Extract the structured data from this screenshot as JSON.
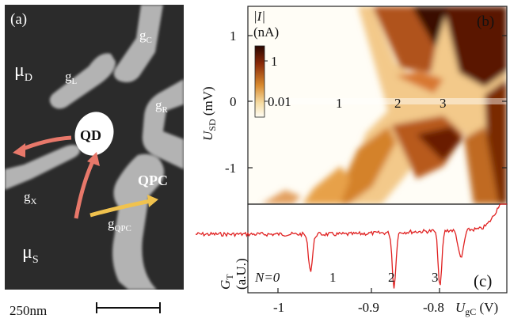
{
  "panel_a": {
    "label": "(a)",
    "gate_labels": {
      "gC": "g",
      "gC_sub": "C",
      "gL": "g",
      "gL_sub": "L",
      "gR": "g",
      "gR_sub": "R",
      "gX": "g",
      "gX_sub": "X",
      "gQPC": "g",
      "gQPC_sub": "QPC"
    },
    "mu_D": "μ",
    "mu_D_sub": "D",
    "mu_S": "μ",
    "mu_S_sub": "S",
    "qd_label": "QD",
    "qpc_label": "QPC",
    "scalebar_label": "250nm"
  },
  "panel_b": {
    "label": "(b)",
    "colorbar_title": "|I|",
    "colorbar_unit": "(nA)",
    "colorbar_ticks": [
      "1",
      "0.01"
    ],
    "ylabel": "U",
    "ylabel_sub": "SD",
    "ylabel_unit": " (mV)",
    "yticks": [
      "1",
      "0",
      "-1"
    ],
    "diamond_labels": [
      "1",
      "2",
      "3"
    ]
  },
  "panel_c": {
    "label": "(c)",
    "ylabel": "G",
    "ylabel_sub": "T",
    "ylabel_unit": "(a.U.)",
    "n_labels": [
      "N=0",
      "1",
      "2",
      "3"
    ],
    "xlabel": "U",
    "xlabel_sub": "gC",
    "xlabel_unit": " (V)",
    "xticks": [
      "-1",
      "-0.9",
      "-0.8"
    ]
  },
  "colors": {
    "trace": "#e02020",
    "arrow_red": "#e8786a",
    "arrow_yellow": "#f0c24e",
    "sem_bg": "#2b2b2b",
    "gate": "#b4b4b4"
  },
  "chart_data": [
    {
      "type": "heatmap",
      "title": "",
      "ylabel": "U_SD (mV)",
      "ylim": [
        -1.5,
        1.5
      ],
      "xlim": [
        -1.05,
        -0.74
      ],
      "colorbar": "|I| (nA), log scale",
      "colorbar_ticks": [
        1,
        0.01
      ],
      "diamonds": [
        {
          "label": "1",
          "center_x": -0.93,
          "center_y": 0
        },
        {
          "label": "2",
          "center_x": -0.855,
          "center_y": 0
        },
        {
          "label": "3",
          "center_x": -0.82,
          "center_y": 0
        }
      ]
    },
    {
      "type": "line",
      "xlabel": "U_gC (V)",
      "ylabel": "G_T (a.U.)",
      "xlim": [
        -1.05,
        -0.74
      ],
      "xticks": [
        -1,
        -0.9,
        -0.8
      ],
      "dips_x": [
        -0.975,
        -0.875,
        -0.82,
        -0.795
      ],
      "regions": [
        "N=0",
        "1",
        "2",
        "3"
      ]
    }
  ]
}
